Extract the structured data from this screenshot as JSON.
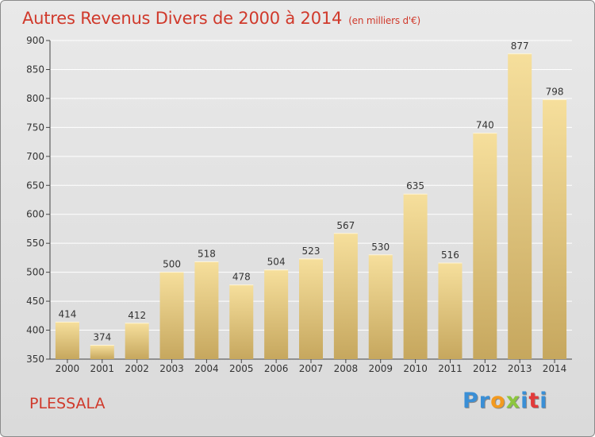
{
  "title": "Autres Revenus Divers de 2000 à 2014",
  "title_unit": "(en milliers d'€)",
  "commune": "PLESSALA",
  "logo": {
    "letters": [
      "P",
      "r",
      "o",
      "x",
      "i",
      "t",
      "i"
    ],
    "colors": [
      "#3a8fd6",
      "#3a8fd6",
      "#f39a1f",
      "#8cc63e",
      "#3a8fd6",
      "#e23a3a",
      "#3a8fd6"
    ]
  },
  "colors": {
    "title": "#d0392b",
    "bar_light": "#f6df9c",
    "bar_dark": "#c6a75e"
  },
  "chart_data": {
    "type": "bar",
    "categories": [
      "2000",
      "2001",
      "2002",
      "2003",
      "2004",
      "2005",
      "2006",
      "2007",
      "2008",
      "2009",
      "2010",
      "2011",
      "2012",
      "2013",
      "2014"
    ],
    "values": [
      414,
      374,
      412,
      500,
      518,
      478,
      504,
      523,
      567,
      530,
      635,
      516,
      740,
      877,
      798
    ],
    "ylim": [
      350,
      900
    ],
    "yticks": [
      350,
      400,
      450,
      500,
      550,
      600,
      650,
      700,
      750,
      800,
      850,
      900
    ],
    "grid": true,
    "data_labels": true
  }
}
